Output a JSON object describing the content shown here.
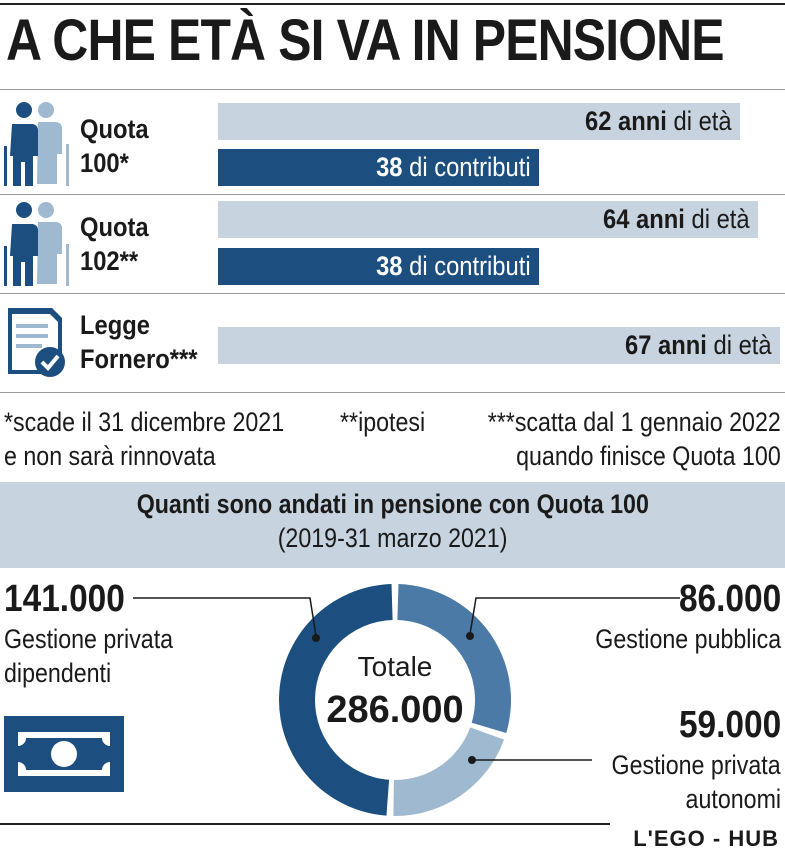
{
  "title": "A CHE ETÀ SI VA IN PENSIONE",
  "colors": {
    "light": "#c7d3df",
    "dark": "#1c4f80",
    "mid": "#4b7aa6",
    "pale": "#9fb9d1"
  },
  "rules": [
    {
      "label_line1": "Quota",
      "label_line2": "100*",
      "icon": "elderly-couple-icon",
      "age_value": "62 anni",
      "age_suffix": " di età",
      "contrib_value": "38",
      "contrib_suffix": " di contributi"
    },
    {
      "label_line1": "Quota",
      "label_line2": "102**",
      "icon": "elderly-couple-icon",
      "age_value": "64 anni",
      "age_suffix": " di età",
      "contrib_value": "38",
      "contrib_suffix": " di contributi"
    },
    {
      "label_line1": "Legge",
      "label_line2": "Fornero***",
      "icon": "document-check-icon",
      "age_value": "67 anni",
      "age_suffix": " di età"
    }
  ],
  "notes": {
    "n1_line1": "*scade il 31 dicembre 2021",
    "n1_line2": "e non sarà rinnovata",
    "n2": "**ipotesi",
    "n3_line1": "***scatta dal 1 gennaio 2022",
    "n3_line2": "quando finisce Quota 100"
  },
  "donut": {
    "title": "Quanti sono andati in pensione con Quota 100",
    "subtitle": "(2019-31 marzo 2021)",
    "center_label": "Totale",
    "center_value": "286.000",
    "segments": [
      {
        "value": "141.000",
        "label_line1": "Gestione privata",
        "label_line2": "dipendenti"
      },
      {
        "value": "86.000",
        "label_line1": "Gestione pubblica",
        "label_line2": ""
      },
      {
        "value": "59.000",
        "label_line1": "Gestione privata",
        "label_line2": "autonomi"
      }
    ]
  },
  "chart_data": [
    {
      "type": "bar",
      "categories": [
        "Quota 100*",
        "Quota 102**",
        "Legge Fornero***"
      ],
      "series": [
        {
          "values": [
            62,
            64,
            67
          ]
        },
        {
          "values": [
            38,
            38,
            null
          ]
        }
      ]
    },
    {
      "type": "pie",
      "title": "Quanti sono andati in pensione con Quota 100",
      "subtitle": "(2019-31 marzo 2021)",
      "categories": [
        "Gestione privata dipendenti",
        "Gestione pubblica",
        "Gestione privata autonomi"
      ],
      "values": [
        141000,
        86000,
        59000
      ],
      "total": 286000
    }
  ],
  "footer": "L'EGO - HUB"
}
